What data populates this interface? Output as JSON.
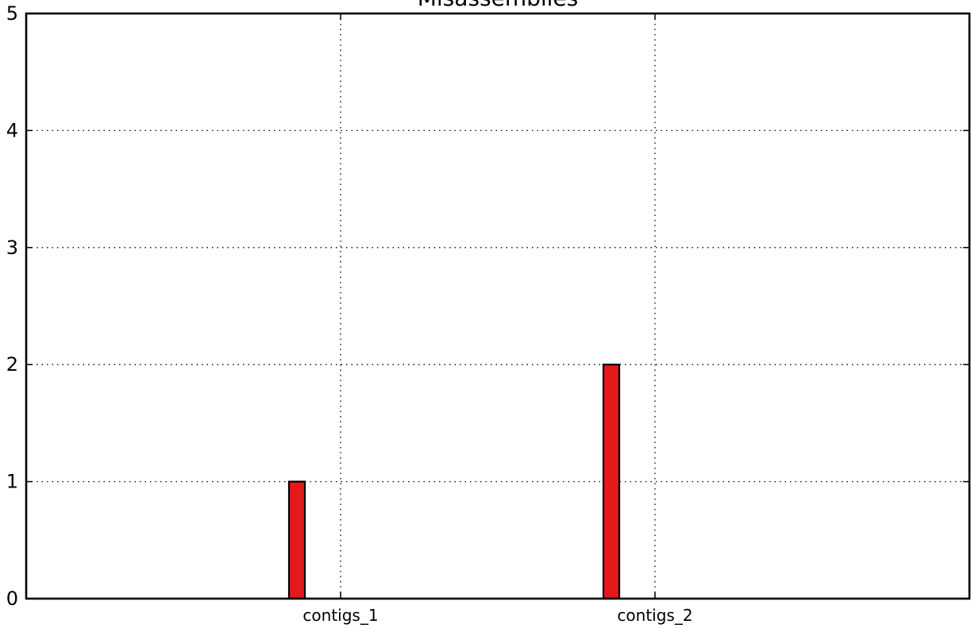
{
  "chart_data": {
    "type": "bar",
    "title": "Misassemblies",
    "xlabel": "",
    "ylabel": "",
    "categories": [
      "contigs_1",
      "contigs_2"
    ],
    "values": [
      1,
      2
    ],
    "ylim": [
      0,
      5
    ],
    "yticks": [
      0,
      1,
      2,
      3,
      4,
      5
    ],
    "grid": true,
    "bar_color": "#e31a1c"
  }
}
